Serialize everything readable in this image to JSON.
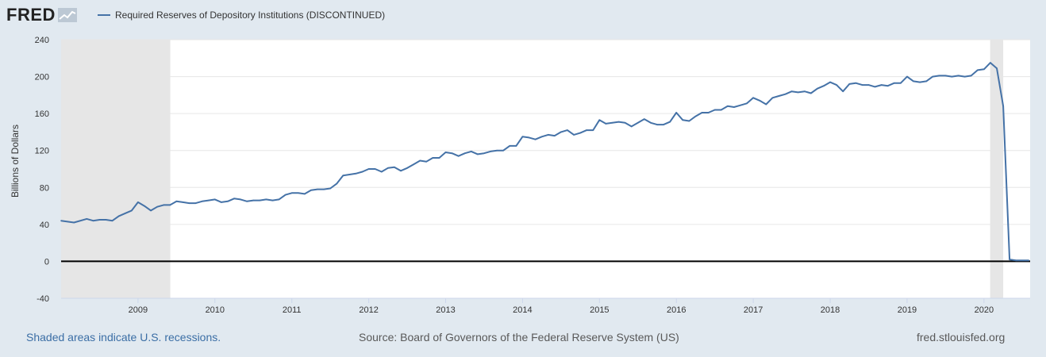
{
  "header": {
    "logo_text": "FRED",
    "legend_label": "Required Reserves of Depository Institutions (DISCONTINUED)"
  },
  "footer": {
    "recession_note": "Shaded areas indicate U.S. recessions.",
    "source": "Source: Board of Governors of the Federal Reserve System (US)",
    "site": "fred.stlouisfed.org"
  },
  "colors": {
    "series": "#4572a7",
    "recession": "#e6e6e6",
    "zero_line": "#000000",
    "grid": "#e6e6e6"
  },
  "chart_data": {
    "type": "line",
    "title": "",
    "xlabel": "",
    "ylabel": "Billions of Dollars",
    "xlim": [
      2008.0,
      2020.6
    ],
    "ylim": [
      -40,
      240
    ],
    "y_ticks": [
      -40,
      0,
      40,
      80,
      120,
      160,
      200,
      240
    ],
    "x_ticks": [
      2009,
      2010,
      2011,
      2012,
      2013,
      2014,
      2015,
      2016,
      2017,
      2018,
      2019,
      2020
    ],
    "recessions": [
      [
        2008.0,
        2009.42
      ],
      [
        2020.08,
        2020.25
      ]
    ],
    "series": [
      {
        "name": "Required Reserves of Depository Institutions (DISCONTINUED)",
        "x": [
          2008.0,
          2008.167,
          2008.333,
          2008.417,
          2008.5,
          2008.583,
          2008.667,
          2008.75,
          2008.833,
          2008.917,
          2009.0,
          2009.083,
          2009.167,
          2009.25,
          2009.333,
          2009.417,
          2009.5,
          2009.583,
          2009.667,
          2009.75,
          2009.833,
          2009.917,
          2010.0,
          2010.083,
          2010.167,
          2010.25,
          2010.333,
          2010.417,
          2010.5,
          2010.583,
          2010.667,
          2010.75,
          2010.833,
          2010.917,
          2011.0,
          2011.083,
          2011.167,
          2011.25,
          2011.333,
          2011.417,
          2011.5,
          2011.583,
          2011.667,
          2011.75,
          2011.833,
          2011.917,
          2012.0,
          2012.083,
          2012.167,
          2012.25,
          2012.333,
          2012.417,
          2012.5,
          2012.583,
          2012.667,
          2012.75,
          2012.833,
          2012.917,
          2013.0,
          2013.083,
          2013.167,
          2013.25,
          2013.333,
          2013.417,
          2013.5,
          2013.583,
          2013.667,
          2013.75,
          2013.833,
          2013.917,
          2014.0,
          2014.083,
          2014.167,
          2014.25,
          2014.333,
          2014.417,
          2014.5,
          2014.583,
          2014.667,
          2014.75,
          2014.833,
          2014.917,
          2015.0,
          2015.083,
          2015.167,
          2015.25,
          2015.333,
          2015.417,
          2015.5,
          2015.583,
          2015.667,
          2015.75,
          2015.833,
          2015.917,
          2016.0,
          2016.083,
          2016.167,
          2016.25,
          2016.333,
          2016.417,
          2016.5,
          2016.583,
          2016.667,
          2016.75,
          2016.833,
          2016.917,
          2017.0,
          2017.083,
          2017.167,
          2017.25,
          2017.333,
          2017.417,
          2017.5,
          2017.583,
          2017.667,
          2017.75,
          2017.833,
          2017.917,
          2018.0,
          2018.083,
          2018.167,
          2018.25,
          2018.333,
          2018.417,
          2018.5,
          2018.583,
          2018.667,
          2018.75,
          2018.833,
          2018.917,
          2019.0,
          2019.083,
          2019.167,
          2019.25,
          2019.333,
          2019.417,
          2019.5,
          2019.583,
          2019.667,
          2019.75,
          2019.833,
          2019.917,
          2020.0,
          2020.083,
          2020.167,
          2020.25,
          2020.333,
          2020.417,
          2020.5,
          2020.583
        ],
        "y": [
          44,
          42,
          46,
          44,
          45,
          45,
          44,
          49,
          52,
          55,
          64,
          60,
          55,
          59,
          61,
          61,
          65,
          64,
          63,
          63,
          65,
          66,
          67,
          64,
          65,
          68,
          67,
          65,
          66,
          66,
          67,
          66,
          67,
          72,
          74,
          74,
          73,
          77,
          78,
          78,
          79,
          84,
          93,
          94,
          95,
          97,
          100,
          100,
          97,
          101,
          102,
          98,
          101,
          105,
          109,
          108,
          112,
          112,
          118,
          117,
          114,
          117,
          119,
          116,
          117,
          119,
          120,
          120,
          125,
          125,
          135,
          134,
          132,
          135,
          137,
          136,
          140,
          142,
          137,
          139,
          142,
          142,
          153,
          149,
          150,
          151,
          150,
          146,
          150,
          154,
          150,
          148,
          148,
          151,
          161,
          153,
          152,
          157,
          161,
          161,
          164,
          164,
          168,
          167,
          169,
          171,
          177,
          174,
          170,
          177,
          179,
          181,
          184,
          183,
          184,
          182,
          187,
          190,
          194,
          191,
          184,
          192,
          193,
          191,
          191,
          189,
          191,
          190,
          193,
          193,
          200,
          195,
          194,
          195,
          200,
          201,
          201,
          200,
          201,
          200,
          201,
          207,
          208,
          215,
          209,
          168,
          2,
          1,
          1,
          1
        ]
      }
    ]
  }
}
